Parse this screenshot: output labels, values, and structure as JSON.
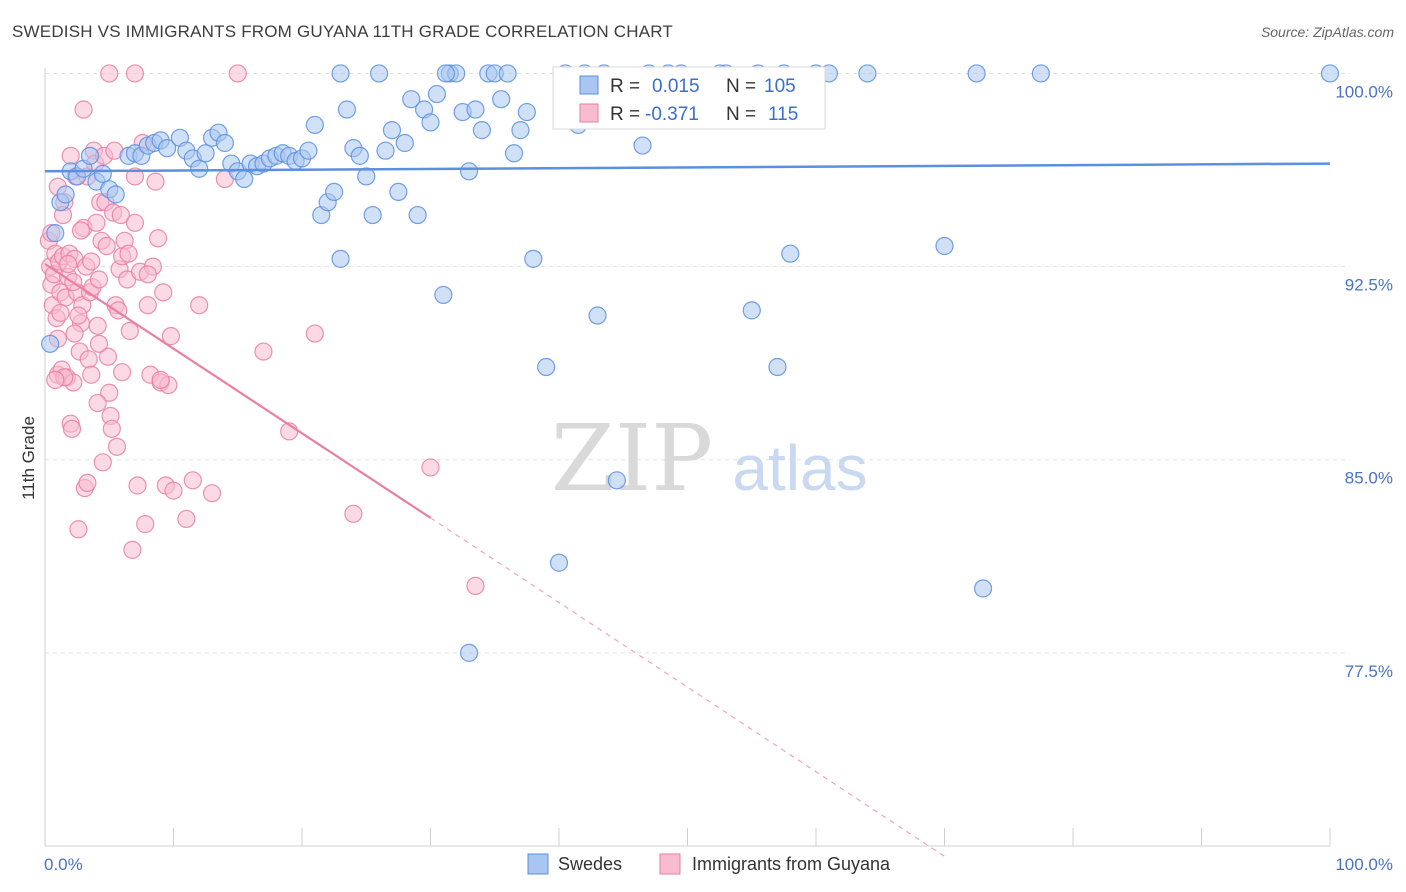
{
  "title": "SWEDISH VS IMMIGRANTS FROM GUYANA 11TH GRADE CORRELATION CHART",
  "source": "Source: ZipAtlas.com",
  "watermark": {
    "zip": "ZIP",
    "atlas": "atlas"
  },
  "stats": [
    {
      "r_label": "R =",
      "r_value": "0.015",
      "n_label": "N =",
      "n_value": "105",
      "color": "#5b8fe0"
    },
    {
      "r_label": "R =",
      "r_value": "-0.371",
      "n_label": "N =",
      "n_value": "115",
      "color": "#ea7ea3"
    }
  ],
  "chart_data": {
    "type": "scatter",
    "ylabel": "11th Grade",
    "x_tick_labels": [
      "0.0%",
      "100.0%"
    ],
    "y_tick_labels": [
      "100.0%",
      "92.5%",
      "85.0%",
      "77.5%"
    ],
    "y_ticks": [
      100.0,
      92.5,
      85.0,
      77.5
    ],
    "xlim": [
      0,
      100
    ],
    "ylim": [
      70.0,
      100.6
    ],
    "grid": true,
    "legend_position": "bottom-center",
    "series": [
      {
        "name": "Swedes",
        "color": "#5b8fe0",
        "fill": "#a9c6f0",
        "trend": {
          "x0": 0,
          "y0": 96.2,
          "x1": 100,
          "y1": 96.5,
          "dash_from": null
        },
        "points": [
          [
            0.4,
            89.5
          ],
          [
            0.8,
            93.8
          ],
          [
            1.2,
            95.0
          ],
          [
            1.6,
            95.3
          ],
          [
            2.0,
            96.2
          ],
          [
            2.5,
            96.0
          ],
          [
            3.0,
            96.3
          ],
          [
            3.5,
            96.8
          ],
          [
            4.0,
            95.8
          ],
          [
            4.5,
            96.1
          ],
          [
            5.0,
            95.5
          ],
          [
            5.5,
            95.3
          ],
          [
            6.5,
            96.8
          ],
          [
            7.0,
            96.9
          ],
          [
            7.5,
            96.8
          ],
          [
            8.0,
            97.2
          ],
          [
            8.5,
            97.3
          ],
          [
            9.0,
            97.4
          ],
          [
            9.5,
            97.1
          ],
          [
            10.5,
            97.5
          ],
          [
            11.0,
            97.0
          ],
          [
            11.5,
            96.7
          ],
          [
            12.0,
            96.3
          ],
          [
            12.5,
            96.9
          ],
          [
            13.0,
            97.5
          ],
          [
            13.5,
            97.7
          ],
          [
            14.0,
            97.3
          ],
          [
            14.5,
            96.5
          ],
          [
            15.0,
            96.2
          ],
          [
            15.5,
            95.9
          ],
          [
            16.0,
            96.5
          ],
          [
            16.5,
            96.4
          ],
          [
            17.0,
            96.5
          ],
          [
            17.5,
            96.7
          ],
          [
            18.0,
            96.8
          ],
          [
            18.5,
            96.9
          ],
          [
            19.0,
            96.8
          ],
          [
            19.5,
            96.6
          ],
          [
            20.0,
            96.7
          ],
          [
            20.5,
            97.0
          ],
          [
            21.0,
            98.0
          ],
          [
            21.5,
            94.5
          ],
          [
            22.0,
            95.0
          ],
          [
            22.5,
            95.4
          ],
          [
            23.0,
            92.8
          ],
          [
            23.5,
            98.6
          ],
          [
            24.0,
            97.1
          ],
          [
            24.5,
            96.8
          ],
          [
            25.0,
            96.0
          ],
          [
            25.5,
            94.5
          ],
          [
            26.0,
            100.0
          ],
          [
            26.5,
            97.0
          ],
          [
            27.0,
            97.8
          ],
          [
            27.5,
            95.4
          ],
          [
            28.0,
            97.3
          ],
          [
            28.5,
            99.0
          ],
          [
            29.0,
            94.5
          ],
          [
            29.5,
            98.6
          ],
          [
            30.0,
            98.1
          ],
          [
            30.5,
            99.2
          ],
          [
            31.0,
            91.4
          ],
          [
            31.5,
            100.0
          ],
          [
            32.0,
            100.0
          ],
          [
            32.5,
            98.5
          ],
          [
            33.0,
            96.2
          ],
          [
            33.5,
            98.6
          ],
          [
            34.0,
            97.8
          ],
          [
            34.5,
            100.0
          ],
          [
            35.0,
            100.0
          ],
          [
            35.5,
            99.0
          ],
          [
            36.0,
            100.0
          ],
          [
            36.5,
            96.9
          ],
          [
            37.0,
            97.8
          ],
          [
            38.0,
            92.8
          ],
          [
            39.0,
            88.6
          ],
          [
            40.0,
            81.0
          ],
          [
            40.5,
            100.0
          ],
          [
            41.5,
            98.0
          ],
          [
            43.0,
            90.6
          ],
          [
            44.5,
            84.2
          ],
          [
            46.5,
            97.2
          ],
          [
            47.0,
            100.0
          ],
          [
            49.5,
            100.0
          ],
          [
            53.0,
            100.0
          ],
          [
            55.0,
            90.8
          ],
          [
            55.5,
            100.0
          ],
          [
            57.0,
            88.6
          ],
          [
            58.0,
            93.0
          ],
          [
            61.0,
            100.0
          ],
          [
            64.0,
            100.0
          ],
          [
            70.0,
            93.3
          ],
          [
            72.5,
            100.0
          ],
          [
            73.0,
            80.0
          ],
          [
            77.5,
            100.0
          ],
          [
            100.0,
            100.0
          ],
          [
            33.0,
            77.5
          ],
          [
            23.0,
            100.0
          ],
          [
            60.0,
            100.0
          ],
          [
            43.5,
            100.0
          ],
          [
            57.5,
            100.0
          ],
          [
            48.5,
            100.0
          ],
          [
            52.5,
            100.0
          ],
          [
            42.0,
            100.0
          ],
          [
            37.5,
            98.5
          ],
          [
            31.2,
            100.0
          ]
        ]
      },
      {
        "name": "Immigrants from Guyana",
        "color": "#ea7ea3",
        "fill": "#f7bcd0",
        "trend": {
          "x0": 0,
          "y0": 92.6,
          "x1": 70,
          "y1": 69.6,
          "dash_from": 30
        },
        "points": [
          [
            0.3,
            93.5
          ],
          [
            0.4,
            92.5
          ],
          [
            0.5,
            91.8
          ],
          [
            0.6,
            91.0
          ],
          [
            0.7,
            92.2
          ],
          [
            0.8,
            93.0
          ],
          [
            0.9,
            90.5
          ],
          [
            1.0,
            89.7
          ],
          [
            1.0,
            88.3
          ],
          [
            1.1,
            92.7
          ],
          [
            1.2,
            91.5
          ],
          [
            1.3,
            88.5
          ],
          [
            1.4,
            92.9
          ],
          [
            1.5,
            95.0
          ],
          [
            1.6,
            91.3
          ],
          [
            1.7,
            88.2
          ],
          [
            1.8,
            92.1
          ],
          [
            1.9,
            93.0
          ],
          [
            2.0,
            96.8
          ],
          [
            2.0,
            86.4
          ],
          [
            2.1,
            86.2
          ],
          [
            2.2,
            88.0
          ],
          [
            2.3,
            92.8
          ],
          [
            2.4,
            96.0
          ],
          [
            2.5,
            91.5
          ],
          [
            2.6,
            82.3
          ],
          [
            2.7,
            89.2
          ],
          [
            2.8,
            90.3
          ],
          [
            2.9,
            91.0
          ],
          [
            3.0,
            94.0
          ],
          [
            3.1,
            83.9
          ],
          [
            3.2,
            92.5
          ],
          [
            3.3,
            96.0
          ],
          [
            3.4,
            88.9
          ],
          [
            3.5,
            91.5
          ],
          [
            3.6,
            88.3
          ],
          [
            3.7,
            91.7
          ],
          [
            3.8,
            97.0
          ],
          [
            3.9,
            96.5
          ],
          [
            4.0,
            94.2
          ],
          [
            4.1,
            90.2
          ],
          [
            4.2,
            92.0
          ],
          [
            4.3,
            95.0
          ],
          [
            4.4,
            93.5
          ],
          [
            4.5,
            84.9
          ],
          [
            4.6,
            96.8
          ],
          [
            4.7,
            95.0
          ],
          [
            4.8,
            93.3
          ],
          [
            4.9,
            89.0
          ],
          [
            5.0,
            87.6
          ],
          [
            5.1,
            86.7
          ],
          [
            5.2,
            86.2
          ],
          [
            5.3,
            94.6
          ],
          [
            5.4,
            97.0
          ],
          [
            5.5,
            91.0
          ],
          [
            5.6,
            85.5
          ],
          [
            5.7,
            90.8
          ],
          [
            5.8,
            92.4
          ],
          [
            5.9,
            94.5
          ],
          [
            6.0,
            88.4
          ],
          [
            6.2,
            93.5
          ],
          [
            6.4,
            92.0
          ],
          [
            6.6,
            90.0
          ],
          [
            6.8,
            81.5
          ],
          [
            7.0,
            96.0
          ],
          [
            7.2,
            84.0
          ],
          [
            7.4,
            92.3
          ],
          [
            7.6,
            97.3
          ],
          [
            7.8,
            82.5
          ],
          [
            8.0,
            91.0
          ],
          [
            8.2,
            88.3
          ],
          [
            8.4,
            92.5
          ],
          [
            8.6,
            95.8
          ],
          [
            8.8,
            93.6
          ],
          [
            9.0,
            88.0
          ],
          [
            9.2,
            91.5
          ],
          [
            9.4,
            84.0
          ],
          [
            9.6,
            87.9
          ],
          [
            9.8,
            89.8
          ],
          [
            10.0,
            83.8
          ],
          [
            11.0,
            82.7
          ],
          [
            11.5,
            84.2
          ],
          [
            12.0,
            91.0
          ],
          [
            13.0,
            83.7
          ],
          [
            14.0,
            95.9
          ],
          [
            15.0,
            100.0
          ],
          [
            17.0,
            89.2
          ],
          [
            19.0,
            86.1
          ],
          [
            21.0,
            89.9
          ],
          [
            24.0,
            82.9
          ],
          [
            30.0,
            84.7
          ],
          [
            1.5,
            88.2
          ],
          [
            2.2,
            91.9
          ],
          [
            3.6,
            92.7
          ],
          [
            1.2,
            90.7
          ],
          [
            0.5,
            93.8
          ],
          [
            1.0,
            95.6
          ],
          [
            2.8,
            93.9
          ],
          [
            4.2,
            89.5
          ],
          [
            3.0,
            98.6
          ],
          [
            6.0,
            92.9
          ],
          [
            7.0,
            94.2
          ],
          [
            1.8,
            92.6
          ],
          [
            2.6,
            90.6
          ],
          [
            5.0,
            100.0
          ],
          [
            7.0,
            100.0
          ],
          [
            3.3,
            84.1
          ],
          [
            4.1,
            87.2
          ],
          [
            9.0,
            88.1
          ],
          [
            33.5,
            80.1
          ],
          [
            0.8,
            88.1
          ],
          [
            1.4,
            94.5
          ],
          [
            2.3,
            89.9
          ],
          [
            6.5,
            93.0
          ],
          [
            8.0,
            92.2
          ]
        ]
      }
    ]
  }
}
